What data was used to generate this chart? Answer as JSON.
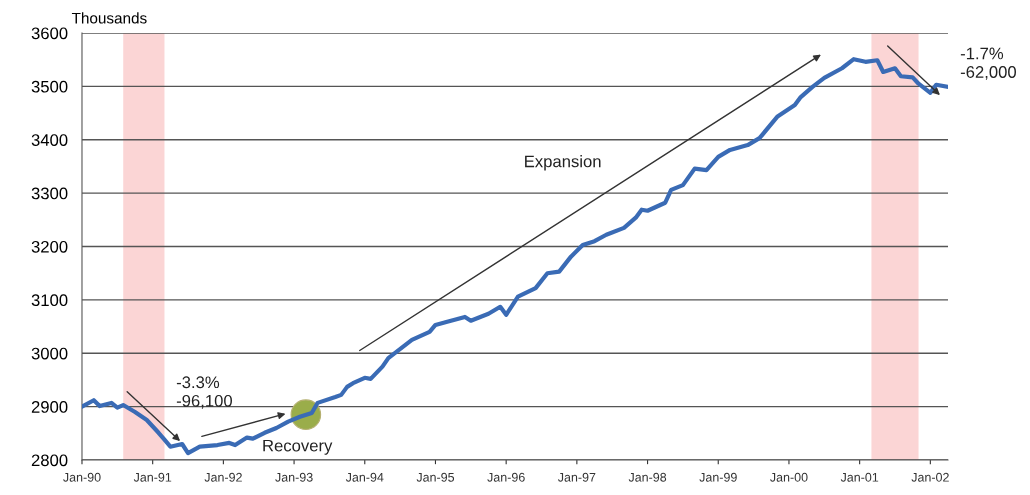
{
  "chart_data": {
    "type": "line",
    "ylabel": "Thousands",
    "x": [
      "1990-01",
      "1990-03",
      "1990-04",
      "1990-06",
      "1990-07",
      "1990-08",
      "1990-10",
      "1990-12",
      "1991-02",
      "1991-03",
      "1991-04",
      "1991-06",
      "1991-07",
      "1991-09",
      "1991-12",
      "1992-02",
      "1992-03",
      "1992-05",
      "1992-06",
      "1992-08",
      "1992-10",
      "1992-12",
      "1993-02",
      "1993-04",
      "1993-05",
      "1993-08",
      "1993-09",
      "1993-10",
      "1993-11",
      "1994-01",
      "1994-02",
      "1994-04",
      "1994-05",
      "1994-09",
      "1994-12",
      "1995-01",
      "1995-03",
      "1995-06",
      "1995-07",
      "1995-10",
      "1995-12",
      "1996-01",
      "1996-03",
      "1996-06",
      "1996-08",
      "1996-10",
      "1996-12",
      "1997-02",
      "1997-04",
      "1997-06",
      "1997-09",
      "1997-11",
      "1997-12",
      "1998-01",
      "1998-04",
      "1998-05",
      "1998-07",
      "1998-09",
      "1998-11",
      "1999-01",
      "1999-03",
      "1999-06",
      "1999-08",
      "1999-11",
      "2000-02",
      "2000-03",
      "2000-05",
      "2000-07",
      "2000-10",
      "2000-12",
      "2001-02",
      "2001-04",
      "2001-05",
      "2001-07",
      "2001-08",
      "2001-10",
      "2001-11",
      "2002-01",
      "2002-02",
      "2002-04"
    ],
    "series": [
      {
        "color": "#3a6bb5",
        "values": [
          2900,
          2912,
          2901,
          2907,
          2898,
          2903,
          2890,
          2875,
          2851,
          2838,
          2825,
          2830,
          2813,
          2825,
          2828,
          2832,
          2828,
          2842,
          2840,
          2851,
          2860,
          2872,
          2881,
          2888,
          2907,
          2918,
          2922,
          2937,
          2944,
          2954,
          2952,
          2975,
          2991,
          3025,
          3040,
          3053,
          3059,
          3068,
          3061,
          3074,
          3087,
          3072,
          3106,
          3122,
          3150,
          3153,
          3181,
          3203,
          3210,
          3222,
          3235,
          3254,
          3269,
          3267,
          3282,
          3306,
          3315,
          3346,
          3343,
          3368,
          3381,
          3390,
          3403,
          3443,
          3465,
          3480,
          3499,
          3516,
          3534,
          3551,
          3546,
          3549,
          3527,
          3534,
          3519,
          3517,
          3505,
          3488,
          3503,
          3499
        ]
      },
      {
        "type": "scatter",
        "color": "#9aad4a",
        "x": [
          "1993-03"
        ],
        "values": [
          2885
        ],
        "marker": "circle"
      }
    ],
    "xlim": [
      "1990-01",
      "2002-04"
    ],
    "xticks": [
      {
        "value": "1990-01",
        "label": "Jan-90"
      },
      {
        "value": "1991-01",
        "label": "Jan-91"
      },
      {
        "value": "1992-01",
        "label": "Jan-92"
      },
      {
        "value": "1993-01",
        "label": "Jan-93"
      },
      {
        "value": "1994-01",
        "label": "Jan-94"
      },
      {
        "value": "1995-01",
        "label": "Jan-95"
      },
      {
        "value": "1996-01",
        "label": "Jan-96"
      },
      {
        "value": "1997-01",
        "label": "Jan-97"
      },
      {
        "value": "1998-01",
        "label": "Jan-98"
      },
      {
        "value": "1999-01",
        "label": "Jan-99"
      },
      {
        "value": "2000-01",
        "label": "Jan-00"
      },
      {
        "value": "2001-01",
        "label": "Jan-01"
      },
      {
        "value": "2002-01",
        "label": "Jan-02"
      }
    ],
    "ylim": [
      2800,
      3600
    ],
    "yticks": [
      2800,
      2900,
      3000,
      3100,
      3200,
      3300,
      3400,
      3500,
      3600
    ],
    "grid": "y",
    "legend": false,
    "bands": [
      {
        "axis": "x",
        "from": "1990-08",
        "to": "1991-03",
        "color": "#fbd5d5"
      },
      {
        "axis": "x",
        "from": "2001-03",
        "to": "2001-11",
        "color": "#fbd5d5"
      }
    ],
    "annotations": [
      {
        "text": "-3.3%\n-96,100",
        "x": "1991-06",
        "y": 2832
      },
      {
        "text": "Recovery",
        "x": "1992-12",
        "y": 2888
      },
      "Expansion",
      "-1.7%\n-62,000"
    ]
  }
}
